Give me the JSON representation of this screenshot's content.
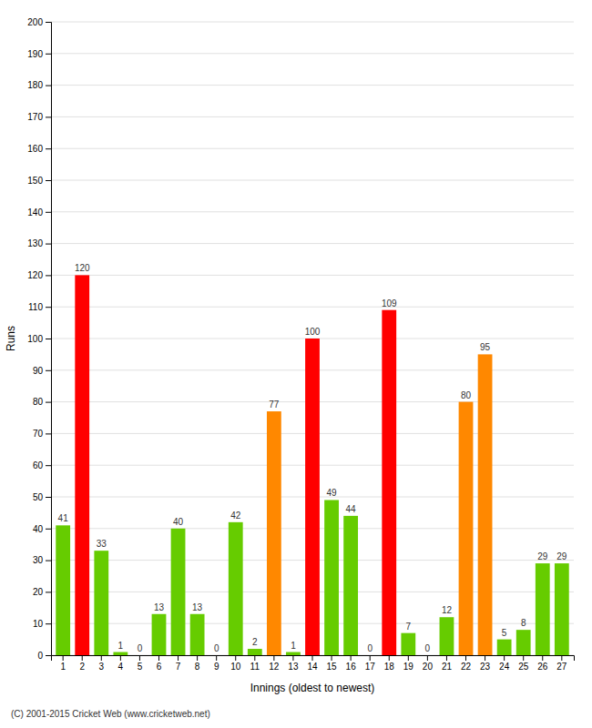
{
  "chart_data": {
    "type": "bar",
    "categories": [
      "1",
      "2",
      "3",
      "4",
      "5",
      "6",
      "7",
      "8",
      "9",
      "10",
      "11",
      "12",
      "13",
      "14",
      "15",
      "16",
      "17",
      "18",
      "19",
      "20",
      "21",
      "22",
      "23",
      "24",
      "25",
      "26",
      "27"
    ],
    "values": [
      41,
      120,
      33,
      1,
      0,
      13,
      40,
      13,
      0,
      42,
      2,
      77,
      1,
      100,
      49,
      44,
      0,
      109,
      7,
      0,
      12,
      80,
      95,
      5,
      8,
      29,
      29
    ],
    "colors": [
      "#66cc00",
      "#ff0000",
      "#66cc00",
      "#66cc00",
      "#66cc00",
      "#66cc00",
      "#66cc00",
      "#66cc00",
      "#66cc00",
      "#66cc00",
      "#66cc00",
      "#ff8800",
      "#66cc00",
      "#ff0000",
      "#66cc00",
      "#66cc00",
      "#66cc00",
      "#ff0000",
      "#66cc00",
      "#66cc00",
      "#66cc00",
      "#ff8800",
      "#ff8800",
      "#66cc00",
      "#66cc00",
      "#66cc00",
      "#66cc00"
    ],
    "xlabel": "Innings (oldest to newest)",
    "ylabel": "Runs",
    "ylim": [
      0,
      200
    ],
    "yticks": [
      0,
      10,
      20,
      30,
      40,
      50,
      60,
      70,
      80,
      90,
      100,
      110,
      120,
      130,
      140,
      150,
      160,
      170,
      180,
      190,
      200
    ],
    "grid": true,
    "data_labels": true,
    "annotations": [
      "(C) 2001-2015 Cricket Web (www.cricketweb.net)"
    ]
  }
}
